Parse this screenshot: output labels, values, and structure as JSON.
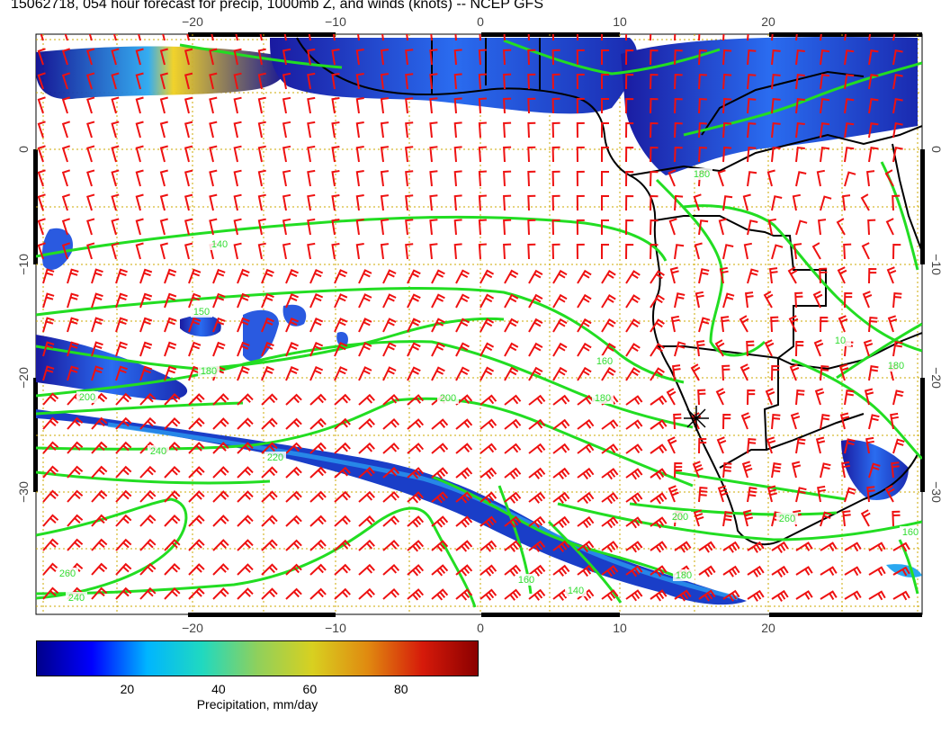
{
  "title": "15062718, 054 hour forecast for precip, 1000mb Z, and winds (knots) -- NCEP GFS",
  "map": {
    "lon_ticks": [
      "−20",
      "−10",
      "0",
      "10",
      "20"
    ],
    "lat_ticks": [
      "0",
      "−10",
      "−20",
      "−30"
    ],
    "contour_labels": [
      "140",
      "150",
      "180",
      "200",
      "240",
      "220",
      "260",
      "240",
      "200",
      "180",
      "160",
      "140",
      "160",
      "180",
      "200",
      "260",
      "180",
      "10",
      "180",
      "160"
    ],
    "colors": {
      "contour": "#22dd22",
      "wind_barb": "#ee1111",
      "coast": "#000000",
      "grid": "#ccaa00"
    },
    "wind_units": "knots"
  },
  "colorbar": {
    "ticks": [
      "20",
      "40",
      "60",
      "80"
    ],
    "tick_values": [
      20,
      40,
      60,
      80
    ],
    "range": [
      0,
      97
    ],
    "label": "Precipitation, mm/day",
    "colors": [
      "#00008b",
      "#0000ff",
      "#00b5ff",
      "#20d9c0",
      "#8fd05c",
      "#d8d020",
      "#e08a10",
      "#d61a0a",
      "#8b0000"
    ]
  }
}
